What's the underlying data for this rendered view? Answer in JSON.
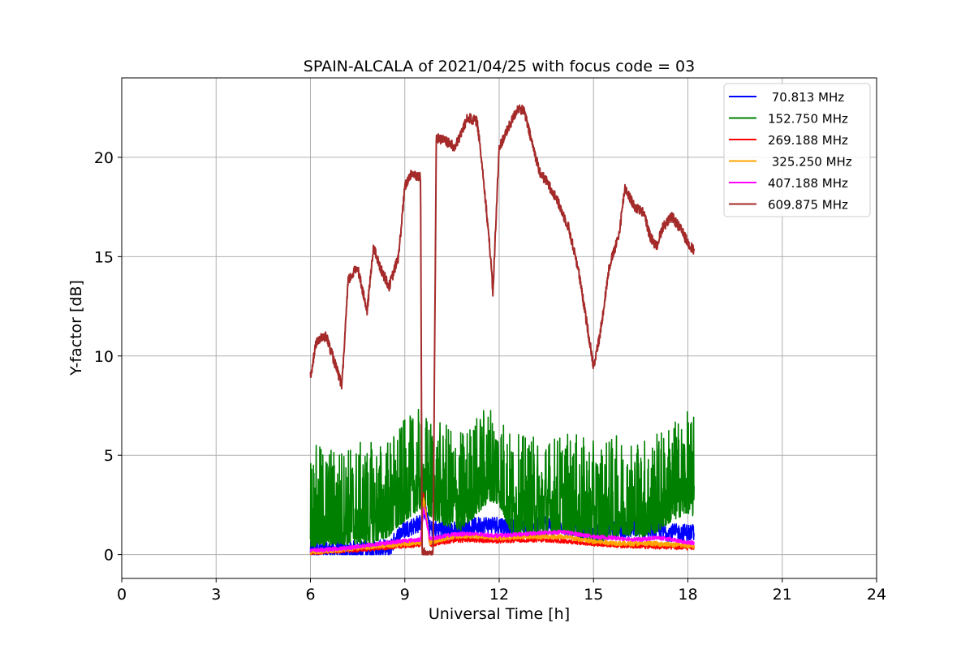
{
  "chart_data": {
    "type": "line",
    "title": "SPAIN-ALCALA of 2021/04/25 with focus code = 03",
    "xlabel": "Universal Time [h]",
    "ylabel": "Y-factor [dB]",
    "xlim": [
      0,
      24
    ],
    "ylim": [
      -1.2,
      24
    ],
    "xticks": [
      0,
      3,
      6,
      9,
      12,
      15,
      18,
      21,
      24
    ],
    "yticks": [
      0,
      5,
      10,
      15,
      20
    ],
    "grid": true,
    "legend_position": "top-right",
    "series": [
      {
        "name": "70.813 MHz",
        "legend_label": " 70.813 MHz",
        "color": "#0000ff",
        "noise": 0.45,
        "x": [
          6.0,
          8.5,
          8.9,
          9.5,
          9.6,
          9.8,
          10.5,
          11.5,
          12.0,
          12.5,
          13.5,
          14.5,
          15.0,
          15.5,
          16.5,
          17.5,
          18.2
        ],
        "y": [
          0.2,
          0.3,
          1.2,
          1.6,
          2.4,
          1.3,
          1.2,
          1.5,
          1.5,
          1.3,
          1.6,
          1.3,
          1.0,
          1.2,
          1.3,
          1.1,
          1.1
        ]
      },
      {
        "name": "152.750 MHz",
        "legend_label": "152.750 MHz",
        "color": "#008000",
        "noise": 1.6,
        "x": [
          6.0,
          7.0,
          8.0,
          8.5,
          9.0,
          9.5,
          9.8,
          10.2,
          10.8,
          11.2,
          11.7,
          12.0,
          12.4,
          13.0,
          13.5,
          14.0,
          14.5,
          15.0,
          15.5,
          16.0,
          16.5,
          17.0,
          17.5,
          18.0,
          18.2
        ],
        "y": [
          0.9,
          1.0,
          1.1,
          1.4,
          2.2,
          2.8,
          2.4,
          2.0,
          1.7,
          2.4,
          3.2,
          3.0,
          1.5,
          1.4,
          1.4,
          1.6,
          1.4,
          1.1,
          1.3,
          1.5,
          1.4,
          1.6,
          2.2,
          2.6,
          2.4
        ]
      },
      {
        "name": "269.188 MHz",
        "legend_label": "269.188 MHz",
        "color": "#ff0000",
        "noise": 0.12,
        "x": [
          6.0,
          7.0,
          8.0,
          9.0,
          9.5,
          9.6,
          9.8,
          10.5,
          11.0,
          12.0,
          13.0,
          14.0,
          15.0,
          16.0,
          17.0,
          18.0,
          18.2
        ],
        "y": [
          0.1,
          0.2,
          0.3,
          0.45,
          0.5,
          3.0,
          0.5,
          0.7,
          0.75,
          0.7,
          0.75,
          0.7,
          0.55,
          0.45,
          0.4,
          0.35,
          0.35
        ]
      },
      {
        "name": "325.250 MHz",
        "legend_label": " 325.250 MHz",
        "color": "#ffa500",
        "noise": 0.12,
        "x": [
          6.0,
          7.0,
          8.0,
          9.0,
          9.5,
          9.6,
          9.8,
          10.5,
          11.0,
          12.0,
          13.0,
          14.0,
          15.0,
          16.0,
          17.0,
          18.0,
          18.2
        ],
        "y": [
          0.12,
          0.25,
          0.4,
          0.55,
          0.6,
          2.9,
          0.6,
          0.9,
          0.95,
          0.85,
          0.9,
          0.9,
          0.65,
          0.55,
          0.55,
          0.45,
          0.45
        ]
      },
      {
        "name": "407.188 MHz",
        "legend_label": "407.188 MHz",
        "color": "#ff00ff",
        "noise": 0.1,
        "x": [
          6.0,
          7.0,
          8.0,
          9.0,
          9.5,
          9.6,
          9.8,
          10.5,
          11.0,
          12.0,
          13.0,
          14.0,
          15.0,
          16.0,
          16.5,
          17.0,
          17.5,
          18.0,
          18.2
        ],
        "y": [
          0.2,
          0.3,
          0.5,
          0.7,
          0.75,
          2.3,
          0.8,
          1.0,
          1.05,
          0.95,
          1.05,
          1.15,
          0.9,
          0.8,
          0.75,
          0.85,
          0.75,
          0.6,
          0.6
        ]
      },
      {
        "name": "609.875 MHz",
        "legend_label": "609.875 MHz",
        "color": "#a52a2a",
        "noise": 0.25,
        "x": [
          6.0,
          6.2,
          6.5,
          6.8,
          7.0,
          7.2,
          7.5,
          7.8,
          8.0,
          8.2,
          8.5,
          8.8,
          9.0,
          9.2,
          9.5,
          9.55,
          9.6,
          9.9,
          10.0,
          10.3,
          10.6,
          11.0,
          11.3,
          11.5,
          11.7,
          11.8,
          12.0,
          12.3,
          12.6,
          12.8,
          13.0,
          13.3,
          13.5,
          13.8,
          14.2,
          14.5,
          14.8,
          15.0,
          15.2,
          15.5,
          15.8,
          16.0,
          16.3,
          16.6,
          16.8,
          17.0,
          17.2,
          17.5,
          17.8,
          18.0,
          18.2
        ],
        "y": [
          9.0,
          10.8,
          11.0,
          9.5,
          8.5,
          13.8,
          14.5,
          12.2,
          15.5,
          14.5,
          13.5,
          15.0,
          18.5,
          19.2,
          19.0,
          0.1,
          0.1,
          0.1,
          21.0,
          20.8,
          20.5,
          22.0,
          21.8,
          19.0,
          15.5,
          13.2,
          20.5,
          21.5,
          22.5,
          22.3,
          21.0,
          19.2,
          18.8,
          18.0,
          16.5,
          14.5,
          11.5,
          9.5,
          11.0,
          14.5,
          16.0,
          18.5,
          17.5,
          17.2,
          16.0,
          15.5,
          16.5,
          17.0,
          16.3,
          15.7,
          15.3
        ]
      }
    ]
  }
}
